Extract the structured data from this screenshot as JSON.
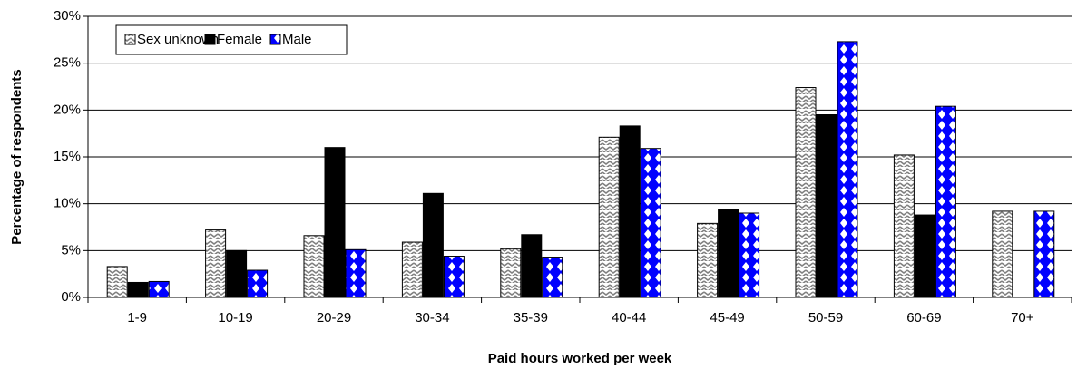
{
  "chart_data": {
    "type": "bar",
    "x_label": "Paid hours worked per week",
    "y_label": "Percentage of respondents",
    "categories": [
      "1-9",
      "10-19",
      "20-29",
      "30-34",
      "35-39",
      "40-44",
      "45-49",
      "50-59",
      "60-69",
      "70+"
    ],
    "series": [
      {
        "name": "Sex unknown",
        "color": "#808080",
        "values": [
          3.3,
          7.2,
          6.6,
          5.9,
          5.2,
          17.1,
          7.9,
          22.4,
          15.2,
          9.2
        ]
      },
      {
        "name": "Female",
        "color": "#000000",
        "values": [
          1.6,
          5.0,
          16.0,
          11.1,
          6.7,
          18.3,
          9.4,
          19.5,
          8.8,
          0
        ]
      },
      {
        "name": "Male",
        "color": "#0000ff",
        "values": [
          1.7,
          2.9,
          5.1,
          4.4,
          4.3,
          15.9,
          9.0,
          27.3,
          20.4,
          9.2
        ]
      }
    ],
    "ylim": [
      0,
      30
    ],
    "yticks": [
      {
        "value": 0,
        "label": "0%"
      },
      {
        "value": 5,
        "label": "5%"
      },
      {
        "value": 10,
        "label": "10%"
      },
      {
        "value": 15,
        "label": "15%"
      },
      {
        "value": 20,
        "label": "20%"
      },
      {
        "value": 25,
        "label": "25%"
      },
      {
        "value": 30,
        "label": "30%"
      }
    ],
    "grid": true,
    "legend": "top-left"
  }
}
